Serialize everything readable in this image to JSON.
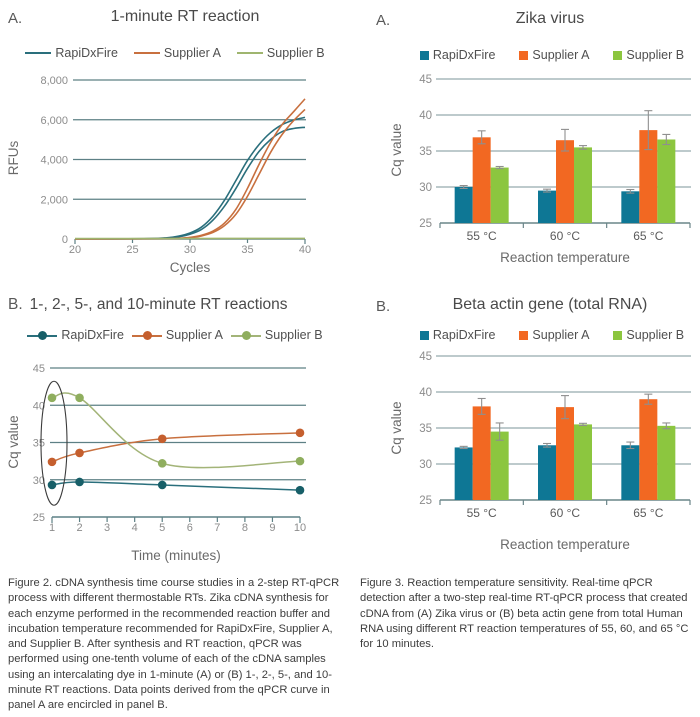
{
  "captions": {
    "figure2": "Figure 2. cDNA synthesis time course studies in a 2-step RT-qPCR process with different thermostable RTs. Zika cDNA synthesis for each enzyme performed in the recommended reaction buffer and incubation temperature recommended for RapiDxFire, Supplier A, and Supplier B. After synthesis and RT reaction, qPCR was performed using one-tenth volume of each of the cDNA samples using an intercalating dye in 1-minute (A) or (B) 1-, 2-, 5-, and 10-minute RT reactions. Data points derived from the qPCR curve in panel A are encircled in panel B.",
    "figure3": "Figure 3. Reaction temperature sensitivity. Real-time qPCR detection after a two-step real-time RT-qPCR process that created cDNA from (A) Zika virus or (B) beta actin gene from total Human RNA using different RT reaction temperatures of 55, 60, and 65 °C for 10 minutes."
  },
  "colors": {
    "teal_bar": "#0e7795",
    "orange_bar": "#f26822",
    "green_bar": "#8cc63f",
    "teal_line": "#2a6f7c",
    "orange_line": "#c8703f",
    "olive_line": "#a3b478",
    "grid_line_chart": "#5d8085",
    "grid_bar_chart": "#7b959a",
    "error_bar": "#8f8f8f",
    "tick_text": "#8c8c8c"
  },
  "chart_data": [
    {
      "id": "fig2a",
      "type": "line",
      "panel_label": "A.",
      "title": "1-minute RT reaction",
      "xlabel": "Cycles",
      "ylabel": "RFUs",
      "xlim": [
        20,
        40
      ],
      "xticks": [
        20,
        25,
        30,
        35,
        40
      ],
      "ylim": [
        0,
        8000
      ],
      "yticks": [
        0,
        2000,
        4000,
        6000,
        8000
      ],
      "ytick_labels": [
        "0",
        "2,000",
        "4,000",
        "6,000",
        "8,000"
      ],
      "grid": "horizontal",
      "legend_position": "top",
      "series": [
        {
          "name": "RapiDxFire",
          "color": "#2a6f7c",
          "curves": [
            [
              [
                20,
                10
              ],
              [
                26,
                15
              ],
              [
                28,
                60
              ],
              [
                29,
                140
              ],
              [
                30,
                300
              ],
              [
                31,
                600
              ],
              [
                32,
                1150
              ],
              [
                33,
                1950
              ],
              [
                34,
                2950
              ],
              [
                35,
                3950
              ],
              [
                36,
                4750
              ],
              [
                37,
                5350
              ],
              [
                38,
                5750
              ],
              [
                39,
                5980
              ],
              [
                40,
                6120
              ]
            ],
            [
              [
                20,
                10
              ],
              [
                26,
                12
              ],
              [
                28,
                45
              ],
              [
                29,
                110
              ],
              [
                30,
                240
              ],
              [
                31,
                480
              ],
              [
                32,
                950
              ],
              [
                33,
                1650
              ],
              [
                34,
                2550
              ],
              [
                35,
                3550
              ],
              [
                36,
                4400
              ],
              [
                37,
                5000
              ],
              [
                38,
                5400
              ],
              [
                39,
                5560
              ],
              [
                40,
                5620
              ]
            ]
          ]
        },
        {
          "name": "Supplier A",
          "color": "#c8703f",
          "curves": [
            [
              [
                20,
                5
              ],
              [
                28,
                15
              ],
              [
                29,
                35
              ],
              [
                30,
                80
              ],
              [
                31,
                190
              ],
              [
                32,
                400
              ],
              [
                33,
                800
              ],
              [
                34,
                1500
              ],
              [
                35,
                2550
              ],
              [
                36,
                3750
              ],
              [
                37,
                4850
              ],
              [
                38,
                5750
              ],
              [
                39,
                6400
              ],
              [
                40,
                7050
              ]
            ],
            [
              [
                20,
                5
              ],
              [
                28,
                12
              ],
              [
                29,
                28
              ],
              [
                30,
                65
              ],
              [
                31,
                155
              ],
              [
                32,
                330
              ],
              [
                33,
                670
              ],
              [
                34,
                1250
              ],
              [
                35,
                2150
              ],
              [
                36,
                3250
              ],
              [
                37,
                4350
              ],
              [
                38,
                5250
              ],
              [
                39,
                5950
              ],
              [
                40,
                6520
              ]
            ]
          ]
        },
        {
          "name": "Supplier B",
          "color": "#9fb56f",
          "curves": [
            [
              [
                20,
                20
              ],
              [
                25,
                22
              ],
              [
                30,
                25
              ],
              [
                35,
                27
              ],
              [
                40,
                30
              ]
            ]
          ]
        }
      ]
    },
    {
      "id": "fig2b",
      "type": "line",
      "panel_label": "B.",
      "title": "1-, 2-, 5-, and 10-minute RT reactions",
      "xlabel": "Time (minutes)",
      "ylabel": "Cq value",
      "xlim": [
        1,
        10
      ],
      "xticks": [
        1,
        2,
        3,
        4,
        5,
        6,
        7,
        8,
        9,
        10
      ],
      "ylim": [
        25,
        45
      ],
      "yticks": [
        25,
        30,
        35,
        40,
        45
      ],
      "ytick_labels": [
        "25",
        "30",
        "35",
        "40",
        "45"
      ],
      "grid": "horizontal",
      "legend_position": "top",
      "x": [
        1,
        2,
        5,
        10
      ],
      "series": [
        {
          "name": "RapiDxFire",
          "color": "#2a6f7c",
          "marker_color": "#175f68",
          "values": [
            29.3,
            29.7,
            29.3,
            28.6
          ]
        },
        {
          "name": "Supplier A",
          "color": "#c8703f",
          "marker_color": "#c55f2e",
          "values": [
            32.4,
            33.6,
            35.5,
            36.3
          ]
        },
        {
          "name": "Supplier B",
          "color": "#a3b478",
          "marker_color": "#8fae5e",
          "values": [
            41.0,
            41.0,
            32.2,
            32.5
          ]
        }
      ],
      "annotation": {
        "shape": "ellipse",
        "at_x": 1,
        "center_cq": 34.9,
        "note": "data points derived from panel A are encircled"
      }
    },
    {
      "id": "fig3a",
      "type": "bar",
      "panel_label": "A.",
      "title": "Zika virus",
      "xlabel": "Reaction temperature",
      "ylabel": "Cq value",
      "categories": [
        "55 °C",
        "60 °C",
        "65 °C"
      ],
      "ylim": [
        25,
        45
      ],
      "yticks": [
        25,
        30,
        35,
        40,
        45
      ],
      "ytick_labels": [
        "25",
        "30",
        "35",
        "40",
        "45"
      ],
      "grid": "horizontal",
      "legend_position": "top",
      "series": [
        {
          "name": "RapiDxFire",
          "color": "#0e7795",
          "values": [
            30.0,
            29.5,
            29.4
          ],
          "errors": [
            0.2,
            0.2,
            0.25
          ]
        },
        {
          "name": "Supplier A",
          "color": "#f26822",
          "values": [
            36.9,
            36.5,
            37.9
          ],
          "errors": [
            0.9,
            1.5,
            2.7
          ]
        },
        {
          "name": "Supplier B",
          "color": "#8cc63f",
          "values": [
            32.7,
            35.5,
            36.6
          ],
          "errors": [
            0.15,
            0.25,
            0.7
          ]
        }
      ]
    },
    {
      "id": "fig3b",
      "type": "bar",
      "panel_label": "B.",
      "title": "Beta actin gene (total RNA)",
      "xlabel": "Reaction temperature",
      "ylabel": "Cq value",
      "categories": [
        "55 °C",
        "60 °C",
        "65 °C"
      ],
      "ylim": [
        25,
        45
      ],
      "yticks": [
        25,
        30,
        35,
        40,
        45
      ],
      "ytick_labels": [
        "25",
        "30",
        "35",
        "40",
        "45"
      ],
      "grid": "horizontal",
      "legend_position": "top",
      "series": [
        {
          "name": "RapiDxFire",
          "color": "#0e7795",
          "values": [
            32.3,
            32.6,
            32.6
          ],
          "errors": [
            0.15,
            0.25,
            0.45
          ]
        },
        {
          "name": "Supplier A",
          "color": "#f26822",
          "values": [
            38.0,
            37.9,
            39.0
          ],
          "errors": [
            1.1,
            1.6,
            0.7
          ]
        },
        {
          "name": "Supplier B",
          "color": "#8cc63f",
          "values": [
            34.5,
            35.5,
            35.3
          ],
          "errors": [
            1.2,
            0.15,
            0.4
          ]
        }
      ]
    }
  ]
}
